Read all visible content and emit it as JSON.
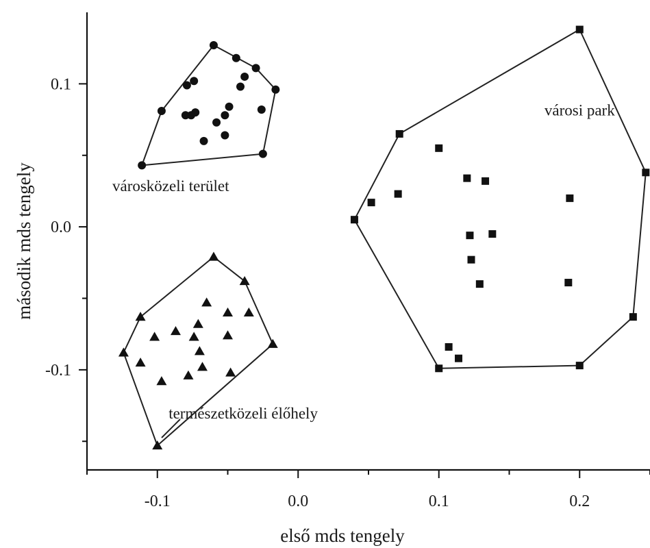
{
  "chart_data": {
    "type": "scatter",
    "xlabel": "első mds tengely",
    "ylabel": "második mds tengely",
    "xlim": [
      -0.15,
      0.25
    ],
    "ylim": [
      -0.17,
      0.15
    ],
    "xticks": [
      {
        "value": -0.1,
        "label": "-0.1"
      },
      {
        "value": 0.0,
        "label": "0.0"
      },
      {
        "value": 0.1,
        "label": "0.1"
      },
      {
        "value": 0.2,
        "label": "0.2"
      }
    ],
    "yticks": [
      {
        "value": 0.1,
        "label": "0.1"
      },
      {
        "value": 0.0,
        "label": "0.0"
      },
      {
        "value": -0.1,
        "label": "-0.1"
      }
    ],
    "grid": false,
    "series": [
      {
        "name": "városközeli terület",
        "marker": "circle",
        "hull": true,
        "points": [
          [
            -0.06,
            0.127
          ],
          [
            -0.044,
            0.118
          ],
          [
            -0.03,
            0.111
          ],
          [
            -0.016,
            0.096
          ],
          [
            -0.025,
            0.051
          ],
          [
            -0.111,
            0.043
          ],
          [
            -0.097,
            0.081
          ],
          [
            -0.079,
            0.099
          ],
          [
            -0.074,
            0.102
          ],
          [
            -0.038,
            0.105
          ],
          [
            -0.041,
            0.098
          ],
          [
            -0.049,
            0.084
          ],
          [
            -0.052,
            0.078
          ],
          [
            -0.058,
            0.073
          ],
          [
            -0.073,
            0.08
          ],
          [
            -0.076,
            0.078
          ],
          [
            -0.08,
            0.078
          ],
          [
            -0.026,
            0.082
          ],
          [
            -0.052,
            0.064
          ],
          [
            -0.067,
            0.06
          ]
        ]
      },
      {
        "name": "városi park",
        "marker": "square",
        "hull": true,
        "points": [
          [
            0.2,
            0.138
          ],
          [
            0.247,
            0.038
          ],
          [
            0.238,
            -0.063
          ],
          [
            0.2,
            -0.097
          ],
          [
            0.1,
            -0.099
          ],
          [
            0.04,
            0.005
          ],
          [
            0.072,
            0.065
          ],
          [
            0.1,
            0.055
          ],
          [
            0.052,
            0.017
          ],
          [
            0.071,
            0.023
          ],
          [
            0.12,
            0.034
          ],
          [
            0.133,
            0.032
          ],
          [
            0.193,
            0.02
          ],
          [
            0.122,
            -0.006
          ],
          [
            0.138,
            -0.005
          ],
          [
            0.123,
            -0.023
          ],
          [
            0.129,
            -0.04
          ],
          [
            0.192,
            -0.039
          ],
          [
            0.107,
            -0.084
          ],
          [
            0.114,
            -0.092
          ]
        ]
      },
      {
        "name": "természetközeli élőhely",
        "marker": "triangle",
        "hull": true,
        "points": [
          [
            -0.06,
            -0.021
          ],
          [
            -0.038,
            -0.038
          ],
          [
            -0.018,
            -0.082
          ],
          [
            -0.1,
            -0.153
          ],
          [
            -0.124,
            -0.088
          ],
          [
            -0.112,
            -0.063
          ],
          [
            -0.102,
            -0.077
          ],
          [
            -0.112,
            -0.095
          ],
          [
            -0.097,
            -0.108
          ],
          [
            -0.087,
            -0.073
          ],
          [
            -0.071,
            -0.068
          ],
          [
            -0.065,
            -0.053
          ],
          [
            -0.05,
            -0.06
          ],
          [
            -0.035,
            -0.06
          ],
          [
            -0.074,
            -0.077
          ],
          [
            -0.07,
            -0.087
          ],
          [
            -0.05,
            -0.076
          ],
          [
            -0.068,
            -0.098
          ],
          [
            -0.078,
            -0.104
          ],
          [
            -0.048,
            -0.102
          ]
        ]
      }
    ],
    "annotations": [
      {
        "text": "városközeli terület",
        "x": -0.132,
        "y": 0.025
      },
      {
        "text": "városi park",
        "x": 0.175,
        "y": 0.078
      },
      {
        "text": "természetközeli élőhely",
        "x": -0.092,
        "y": -0.134
      }
    ]
  }
}
